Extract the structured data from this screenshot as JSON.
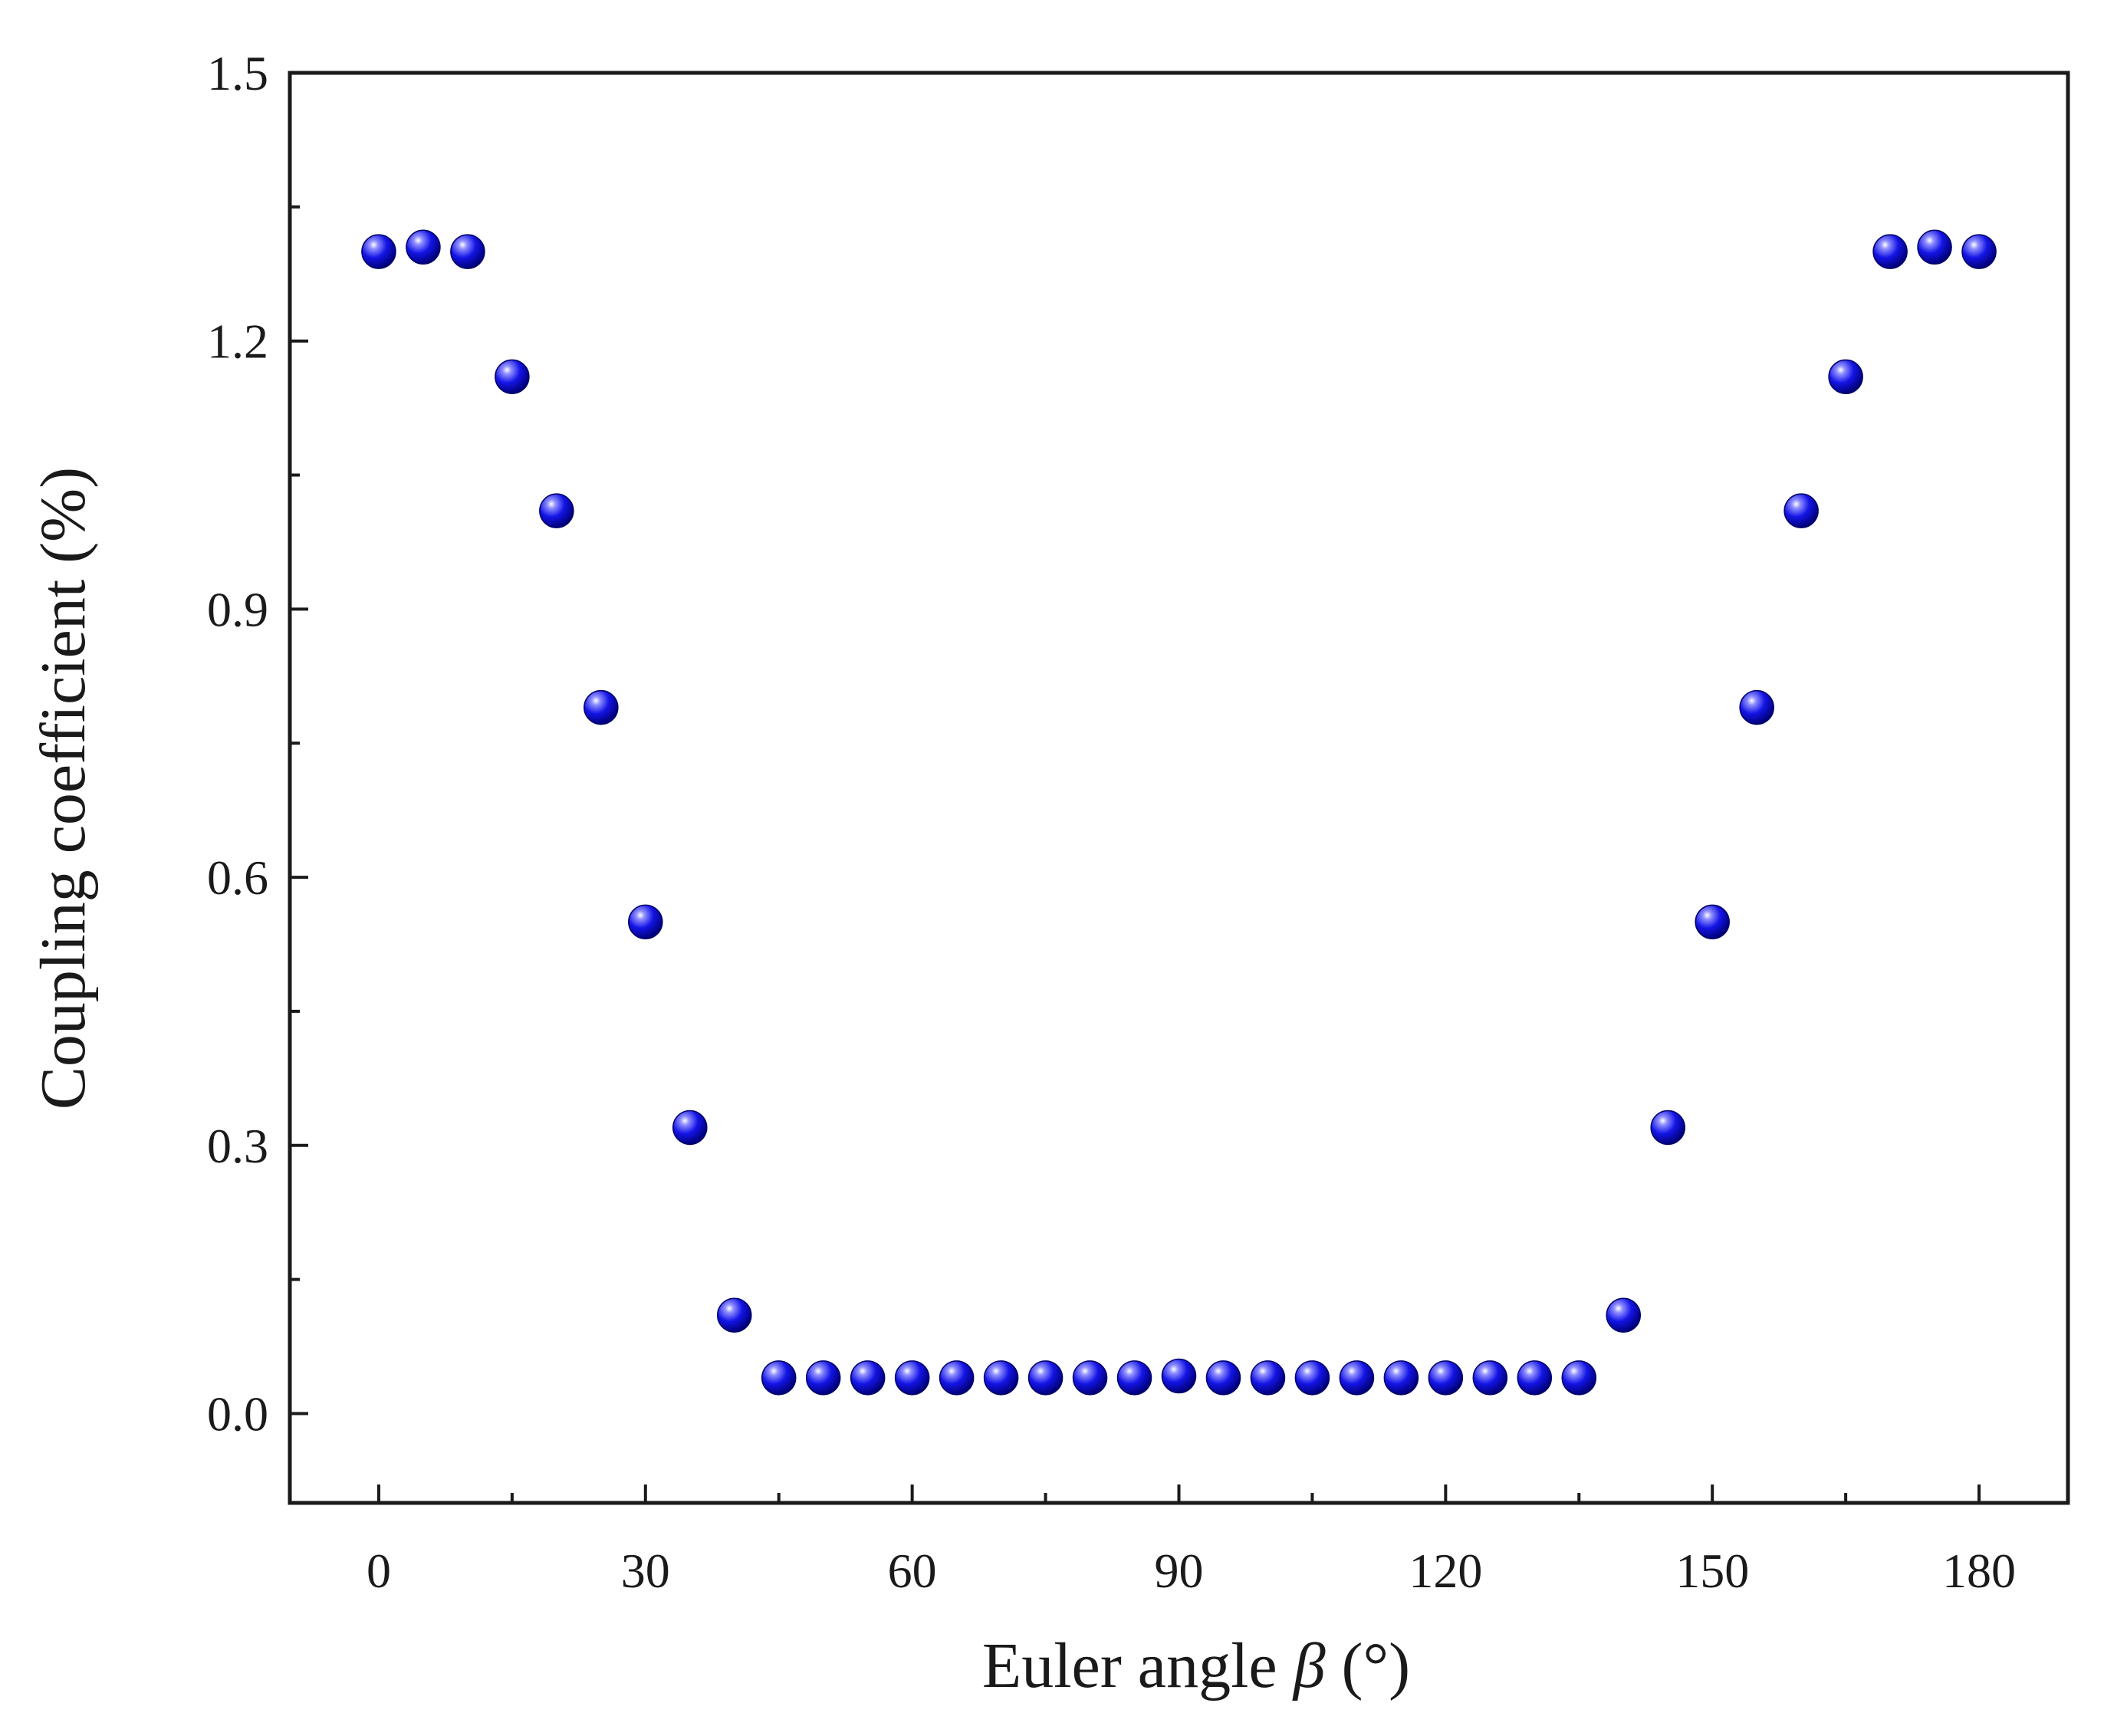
{
  "chart_data": {
    "type": "scatter",
    "title": "",
    "xlabel": "Euler angle",
    "xlabel_symbol": "β",
    "xlabel_unit": "(°)",
    "ylabel": "Coupling coefficient (%)",
    "xlim": [
      -10,
      190
    ],
    "ylim": [
      -0.1,
      1.5
    ],
    "xticks": [
      "0",
      "30",
      "60",
      "90",
      "120",
      "150",
      "180"
    ],
    "yticks": [
      "0.0",
      "0.3",
      "0.6",
      "0.9",
      "1.2",
      "1.5"
    ],
    "grid": false,
    "legend": "none",
    "marker_color": "#1414e6",
    "series": [
      {
        "x": [
          0,
          5,
          10,
          15,
          20,
          25,
          30,
          35,
          40,
          45,
          50,
          55,
          60,
          65,
          70,
          75,
          80,
          85,
          90,
          95,
          100,
          105,
          110,
          115,
          120,
          125,
          130,
          135,
          140,
          145,
          150,
          155,
          160,
          165,
          170,
          175,
          180
        ],
        "values": [
          1.3,
          1.305,
          1.3,
          1.16,
          1.01,
          0.79,
          0.55,
          0.32,
          0.11,
          0.04,
          0.04,
          0.04,
          0.04,
          0.04,
          0.04,
          0.04,
          0.04,
          0.04,
          0.042,
          0.04,
          0.04,
          0.04,
          0.04,
          0.04,
          0.04,
          0.04,
          0.04,
          0.04,
          0.11,
          0.32,
          0.55,
          0.79,
          1.01,
          1.16,
          1.3,
          1.305,
          1.3
        ]
      }
    ]
  }
}
